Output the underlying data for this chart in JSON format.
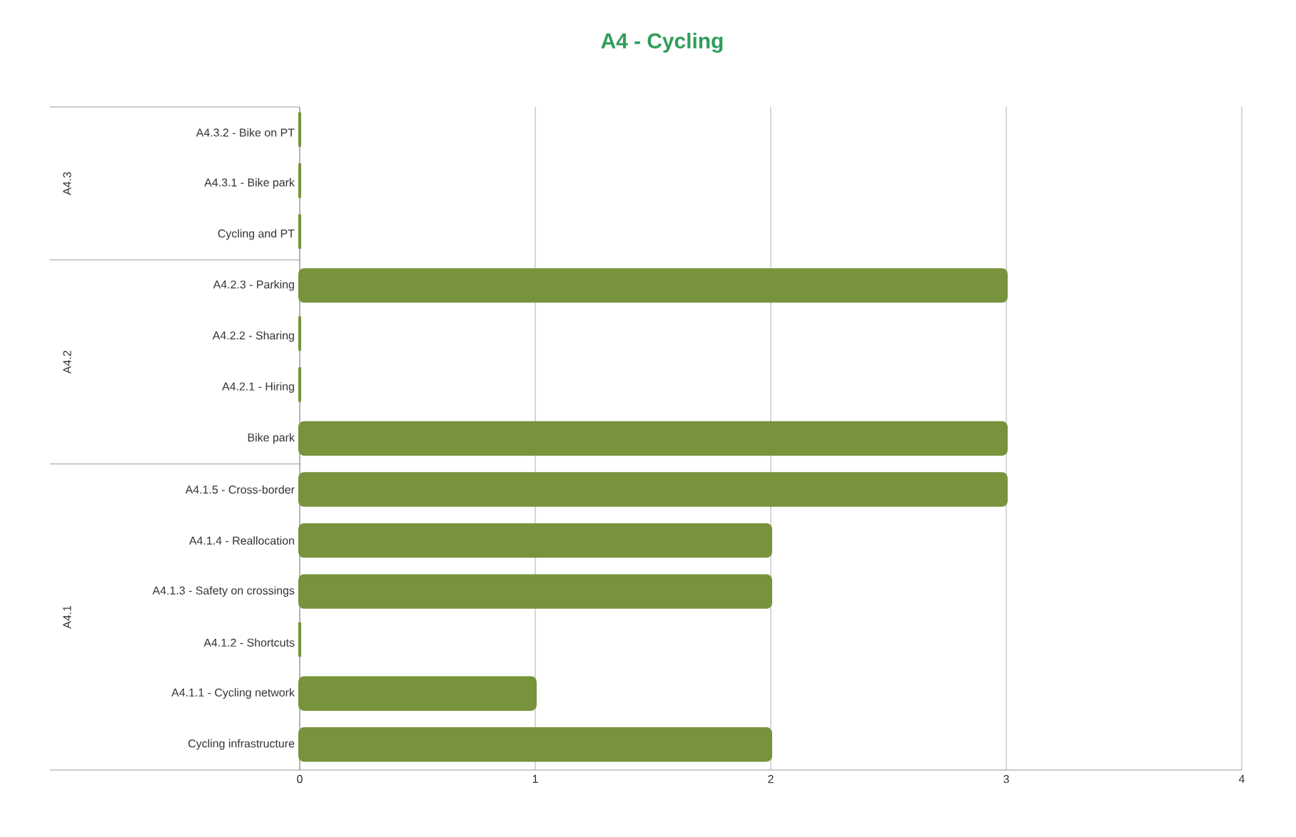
{
  "chart_data": {
    "type": "bar",
    "orientation": "horizontal",
    "title": "A4 - Cycling",
    "categories": [
      "A4.3.2 - Bike on PT",
      "A4.3.1 - Bike park",
      "Cycling and PT",
      "A4.2.3 - Parking",
      "A4.2.2 - Sharing",
      "A4.2.1 - Hiring",
      "Bike park",
      "A4.1.5 - Cross-border",
      "A4.1.4 - Reallocation",
      "A4.1.3 - Safety on crossings",
      "A4.1.2 - Shortcuts",
      "A4.1.1 - Cycling network",
      "Cycling infrastructure"
    ],
    "values": [
      0,
      0,
      0,
      3,
      0,
      0,
      3,
      3,
      2,
      2,
      0,
      1,
      2
    ],
    "color": "#77933c",
    "xlim": [
      0,
      4
    ],
    "xticks": [
      0,
      1,
      2,
      3,
      4
    ],
    "grid": "x",
    "annotations": [
      "A4.3",
      "A4.2",
      "A4.1"
    ]
  }
}
